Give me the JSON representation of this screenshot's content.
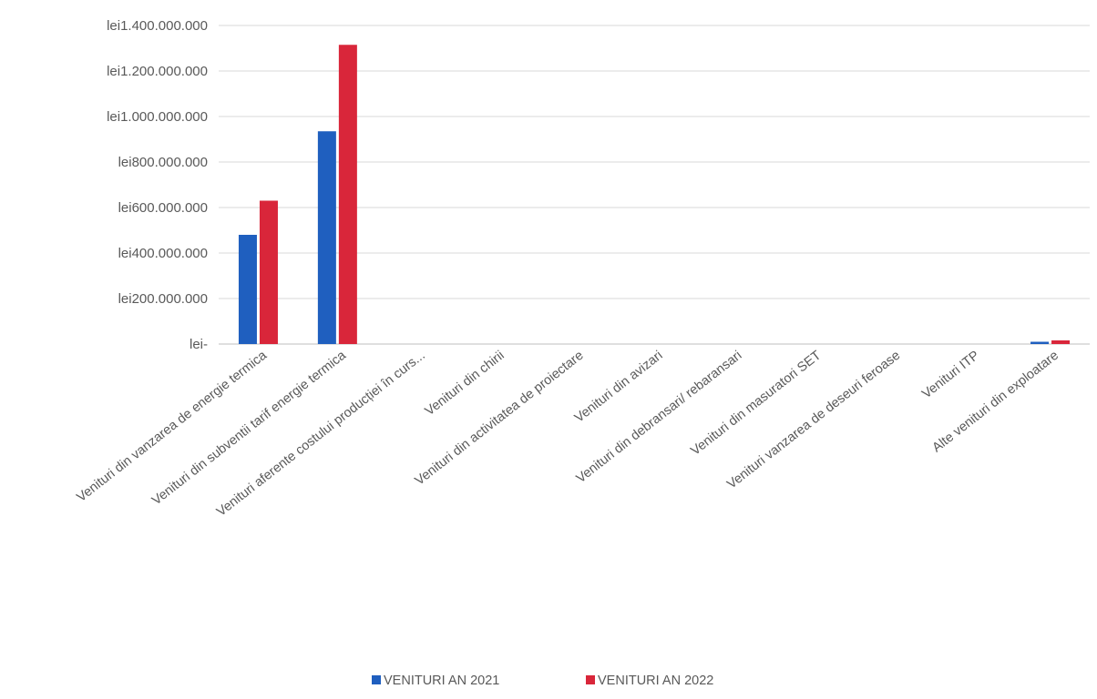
{
  "chart_data": {
    "type": "bar",
    "title": "",
    "xlabel": "",
    "ylabel": "",
    "categories": [
      "Venituri din vanzarea de energie termica",
      "Venituri din subventii tarif energie termica",
      "Venituri aferente costului producției în curs...",
      "Venituri din chirii",
      "Venituri din activitatea de proiectare",
      "Venituri din avizari",
      "Venituri din debransari/ rebaransari",
      "Venituri din masuratori SET",
      "Venituri vanzarea de deseuri feroase",
      "Venituri ITP",
      "Alte venituri din exploatare"
    ],
    "series": [
      {
        "name": "VENITURI AN 2021",
        "color": "#1F5FBF",
        "values": [
          480000000,
          935000000,
          0,
          0,
          0,
          0,
          0,
          0,
          0,
          0,
          10000000
        ]
      },
      {
        "name": "VENITURI AN 2022",
        "color": "#D9263A",
        "values": [
          630000000,
          1315000000,
          0,
          0,
          0,
          0,
          0,
          0,
          0,
          0,
          16000000
        ]
      }
    ],
    "ylim": [
      0,
      1400000000
    ],
    "yticks": [
      0,
      200000000,
      400000000,
      600000000,
      800000000,
      1000000000,
      1200000000,
      1400000000
    ],
    "ytick_labels": [
      "lei-",
      "lei200.000.000",
      "lei400.000.000",
      "lei600.000.000",
      "lei800.000.000",
      "lei1.000.000.000",
      "lei1.200.000.000",
      "lei1.400.000.000"
    ],
    "grid": true,
    "legend_position": "bottom"
  }
}
